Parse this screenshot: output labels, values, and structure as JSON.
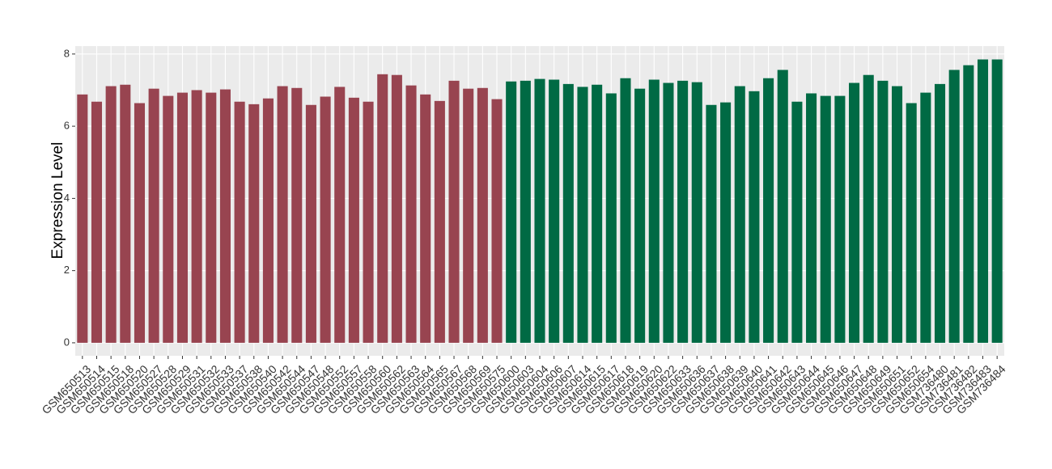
{
  "chart_data": {
    "type": "bar",
    "y_label": "Expression Level",
    "categories": [
      "GSM650513",
      "GSM650514",
      "GSM650515",
      "GSM650518",
      "GSM650520",
      "GSM650527",
      "GSM650528",
      "GSM650529",
      "GSM650531",
      "GSM650532",
      "GSM650533",
      "GSM650537",
      "GSM650538",
      "GSM650540",
      "GSM650542",
      "GSM650544",
      "GSM650547",
      "GSM650548",
      "GSM650552",
      "GSM650557",
      "GSM650558",
      "GSM650560",
      "GSM650562",
      "GSM650563",
      "GSM650564",
      "GSM650565",
      "GSM650567",
      "GSM650568",
      "GSM650569",
      "GSM650575",
      "GSM650600",
      "GSM650603",
      "GSM650604",
      "GSM650606",
      "GSM650607",
      "GSM650614",
      "GSM650615",
      "GSM650617",
      "GSM650618",
      "GSM650619",
      "GSM650620",
      "GSM650622",
      "GSM650633",
      "GSM650636",
      "GSM650637",
      "GSM650638",
      "GSM650639",
      "GSM650640",
      "GSM650641",
      "GSM650642",
      "GSM650643",
      "GSM650644",
      "GSM650645",
      "GSM650646",
      "GSM650647",
      "GSM650648",
      "GSM650649",
      "GSM650651",
      "GSM650652",
      "GSM650654",
      "GSM736480",
      "GSM736481",
      "GSM736482",
      "GSM736483",
      "GSM736484"
    ],
    "values": [
      6.88,
      6.68,
      7.11,
      7.15,
      6.64,
      7.04,
      6.84,
      6.93,
      7.0,
      6.93,
      7.02,
      6.68,
      6.61,
      6.77,
      7.11,
      7.06,
      6.59,
      6.82,
      7.09,
      6.79,
      6.68,
      7.44,
      7.42,
      7.13,
      6.88,
      6.7,
      7.26,
      7.04,
      7.06,
      6.75,
      7.24,
      7.26,
      7.31,
      7.29,
      7.17,
      7.09,
      7.15,
      6.91,
      7.33,
      7.04,
      7.29,
      7.2,
      7.26,
      7.22,
      6.59,
      6.66,
      7.11,
      6.97,
      7.33,
      7.56,
      6.68,
      6.91,
      6.84,
      6.84,
      7.2,
      7.42,
      7.26,
      7.11,
      6.64,
      6.93,
      7.17,
      7.56,
      7.69,
      7.85,
      7.85
    ],
    "colors": [
      "#984450",
      "#984450",
      "#984450",
      "#984450",
      "#984450",
      "#984450",
      "#984450",
      "#984450",
      "#984450",
      "#984450",
      "#984450",
      "#984450",
      "#984450",
      "#984450",
      "#984450",
      "#984450",
      "#984450",
      "#984450",
      "#984450",
      "#984450",
      "#984450",
      "#984450",
      "#984450",
      "#984450",
      "#984450",
      "#984450",
      "#984450",
      "#984450",
      "#984450",
      "#984450",
      "#006a44",
      "#006a44",
      "#006a44",
      "#006a44",
      "#006a44",
      "#006a44",
      "#006a44",
      "#006a44",
      "#006a44",
      "#006a44",
      "#006a44",
      "#006a44",
      "#006a44",
      "#006a44",
      "#006a44",
      "#006a44",
      "#006a44",
      "#006a44",
      "#006a44",
      "#006a44",
      "#006a44",
      "#006a44",
      "#006a44",
      "#006a44",
      "#006a44",
      "#006a44",
      "#006a44",
      "#006a44",
      "#006a44",
      "#006a44",
      "#006a44",
      "#006a44",
      "#006a44",
      "#006a44",
      "#006a44"
    ],
    "ylim": [
      -0.36,
      8.22
    ],
    "yticks": [
      0,
      2,
      4,
      6,
      8
    ],
    "grid": true
  }
}
